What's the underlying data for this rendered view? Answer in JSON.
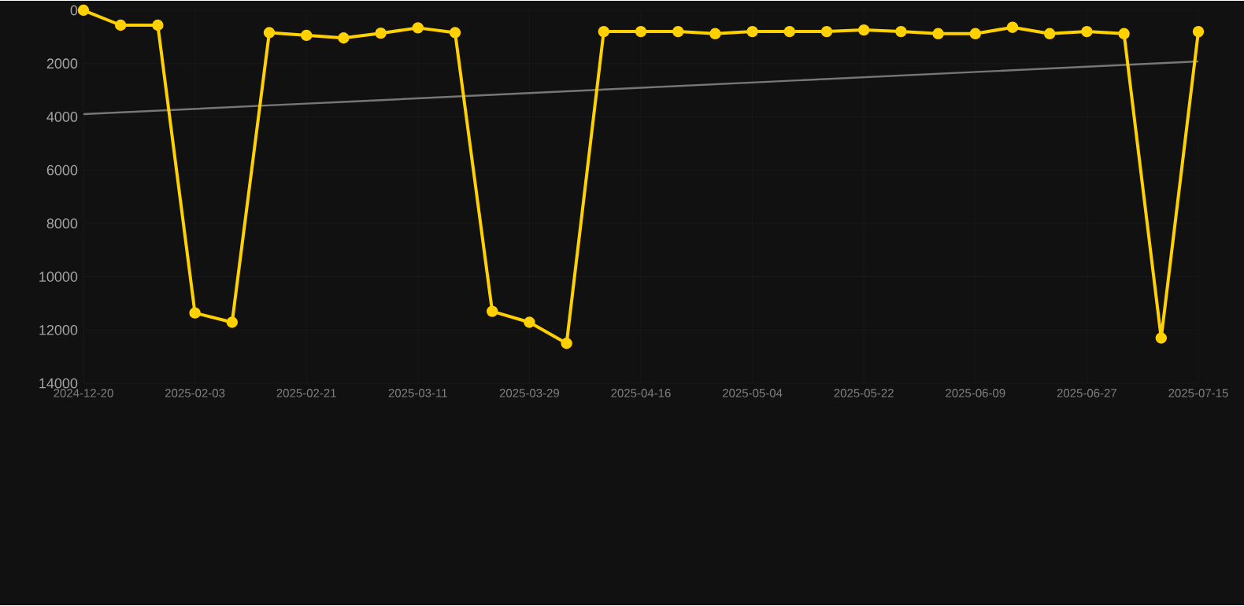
{
  "chart_data": {
    "type": "line",
    "categories": [
      "2024-12-20",
      null,
      null,
      "2025-02-03",
      null,
      null,
      "2025-02-21",
      null,
      null,
      "2025-03-11",
      null,
      null,
      "2025-03-29",
      null,
      null,
      "2025-04-16",
      null,
      null,
      "2025-05-04",
      null,
      null,
      "2025-05-22",
      null,
      null,
      "2025-06-09",
      null,
      null,
      "2025-06-27",
      null,
      null,
      "2025-07-15"
    ],
    "series": [
      {
        "color": "#ffd100",
        "marker": "circle",
        "values": [
          0,
          560,
          560,
          11360,
          11710,
          840,
          940,
          1040,
          860,
          660,
          840,
          11300,
          11710,
          12500,
          800,
          800,
          800,
          880,
          800,
          800,
          800,
          740,
          800,
          880,
          880,
          640,
          880,
          800,
          880,
          12300,
          800
        ]
      },
      {
        "color": "#777777",
        "marker": "none",
        "values": [
          3900,
          3834,
          3768,
          3702,
          3636,
          3570,
          3504,
          3438,
          3372,
          3306,
          3240,
          3174,
          3108,
          3042,
          2976,
          2910,
          2844,
          2778,
          2712,
          2646,
          2580,
          2514,
          2448,
          2382,
          2316,
          2250,
          2184,
          2118,
          2052,
          1986,
          1920
        ]
      }
    ],
    "ylim": [
      14000,
      0
    ],
    "yticks": [
      0,
      2000,
      4000,
      6000,
      8000,
      10000,
      12000,
      14000
    ],
    "grid": true
  }
}
